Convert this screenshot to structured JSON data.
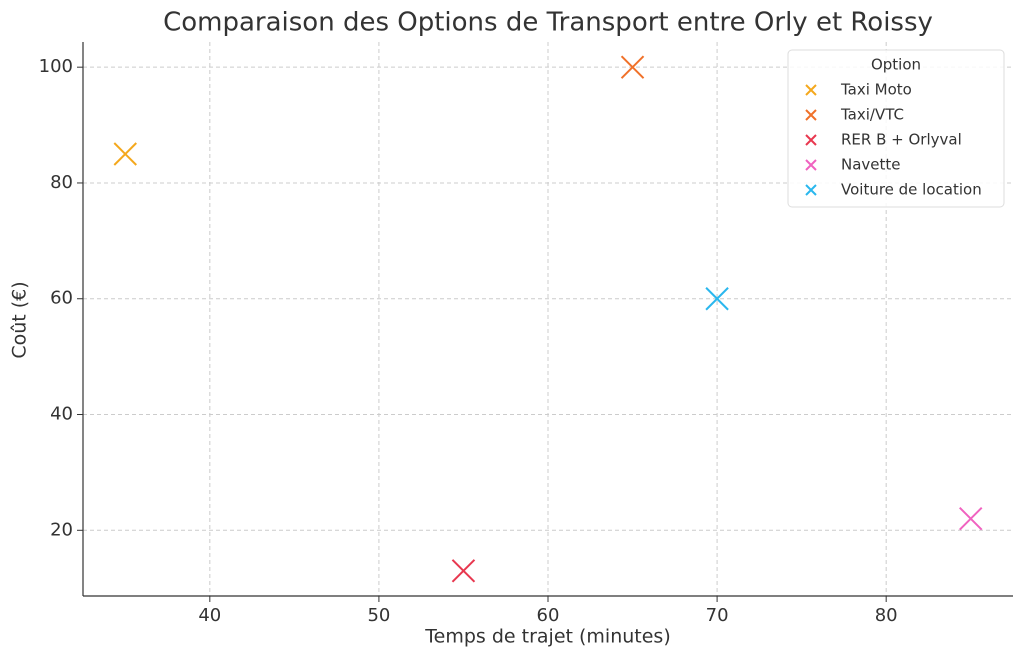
{
  "chart_data": {
    "type": "scatter",
    "title": "Comparaison des Options de Transport entre Orly et Roissy",
    "x_label": "Temps de trajet (minutes)",
    "y_label": "Coût (€)",
    "legend_title": "Option",
    "legend_position": "upper right",
    "grid": true,
    "marker": "x",
    "xlim": [
      32.5,
      87.5
    ],
    "xticks": [
      40,
      50,
      60,
      70,
      80
    ],
    "ylim": [
      8.65,
      104.35
    ],
    "yticks": [
      20,
      40,
      60,
      80,
      100
    ],
    "series": [
      {
        "name": "Taxi Moto",
        "color": "#f4a81d",
        "x": [
          35
        ],
        "values": [
          85
        ]
      },
      {
        "name": "Taxi/VTC",
        "color": "#f07129",
        "x": [
          65
        ],
        "values": [
          100
        ]
      },
      {
        "name": "RER B + Orlyval",
        "color": "#e8384f",
        "x": [
          55
        ],
        "values": [
          13
        ]
      },
      {
        "name": "Navette",
        "color": "#f062c0",
        "x": [
          85
        ],
        "values": [
          22
        ]
      },
      {
        "name": "Voiture de location",
        "color": "#2ab7ee",
        "x": [
          70
        ],
        "values": [
          60
        ]
      }
    ]
  }
}
